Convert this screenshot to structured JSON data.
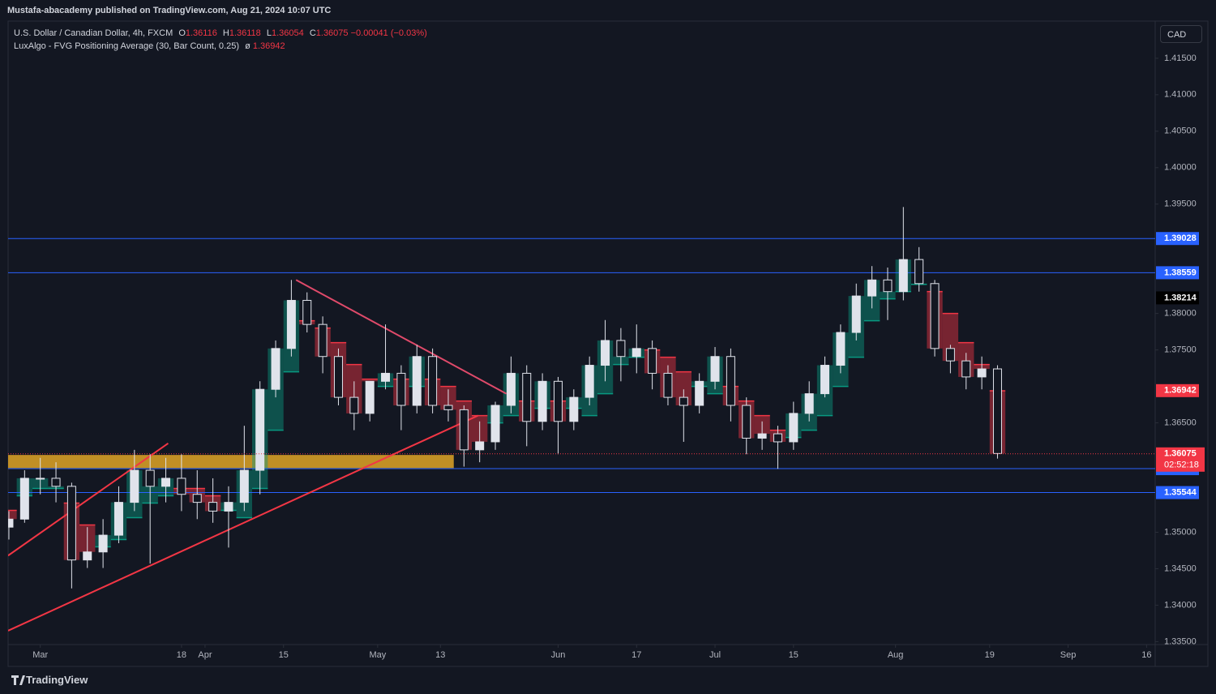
{
  "chart_data": {
    "type": "candlestick",
    "header": "Mustafa-abacademy published on TradingView.com, Aug 21, 2024 10:07 UTC",
    "symbol": "U.S. Dollar / Canadian Dollar, 4h, FXCM",
    "ohlc_labels": [
      "O",
      "H",
      "L",
      "C"
    ],
    "ohlc_values": [
      1.36116,
      1.36118,
      1.36054,
      1.36075
    ],
    "change": "−0.00041 (−0.03%)",
    "currency": "CAD",
    "brand": "TradingView",
    "up_color": "#e0e3eb",
    "down_color": "#131722",
    "x": [
      -4,
      -2,
      0,
      2,
      4,
      6,
      8,
      10,
      12,
      14,
      16,
      18,
      20,
      22,
      24,
      26,
      28,
      30,
      32,
      34,
      36,
      38,
      40,
      42,
      44,
      46,
      48,
      50,
      52,
      54,
      56,
      58,
      60,
      62,
      64,
      66,
      68,
      70,
      72,
      74,
      76,
      78,
      80,
      82,
      84,
      86,
      88,
      90,
      92,
      94,
      96,
      98,
      100,
      102,
      104,
      106,
      108,
      110,
      112,
      114,
      116,
      118,
      120,
      122
    ],
    "open": [
      1.3507,
      1.3518,
      1.3574,
      1.3574,
      1.3563,
      1.3462,
      1.3473,
      1.3496,
      1.3541,
      1.3585,
      1.3563,
      1.3574,
      1.3552,
      1.3541,
      1.3529,
      1.3541,
      1.3585,
      1.3696,
      1.3752,
      1.3818,
      1.3785,
      1.3741,
      1.3685,
      1.3663,
      1.3707,
      1.3718,
      1.3674,
      1.3741,
      1.3674,
      1.3668,
      1.3613,
      1.3624,
      1.3674,
      1.3718,
      1.3652,
      1.3707,
      1.3652,
      1.3685,
      1.3729,
      1.3763,
      1.3741,
      1.3752,
      1.3718,
      1.3685,
      1.3674,
      1.3707,
      1.3741,
      1.3674,
      1.3629,
      1.3635,
      1.3624,
      1.3663,
      1.369,
      1.3729,
      1.3774,
      1.3824,
      1.3846,
      1.383,
      1.3874,
      1.3841,
      1.3752,
      1.3735,
      1.3713,
      1.3724
    ],
    "high": [
      1.3529,
      1.3585,
      1.3602,
      1.3596,
      1.3568,
      1.3507,
      1.3518,
      1.3563,
      1.3613,
      1.3607,
      1.3602,
      1.3607,
      1.3585,
      1.3574,
      1.3563,
      1.3646,
      1.3707,
      1.3763,
      1.3846,
      1.3829,
      1.3796,
      1.3752,
      1.3707,
      1.3707,
      1.3785,
      1.3729,
      1.3757,
      1.3752,
      1.3696,
      1.3674,
      1.3652,
      1.3679,
      1.3741,
      1.3729,
      1.3718,
      1.3713,
      1.3696,
      1.3741,
      1.3791,
      1.378,
      1.3785,
      1.3763,
      1.3729,
      1.3696,
      1.3718,
      1.3754,
      1.3752,
      1.3685,
      1.3652,
      1.3646,
      1.3679,
      1.3707,
      1.3741,
      1.3785,
      1.3841,
      1.3865,
      1.3863,
      1.3946,
      1.3891,
      1.3846,
      1.3757,
      1.3746,
      1.3741,
      1.3729
    ],
    "low": [
      1.349,
      1.3513,
      1.3552,
      1.3541,
      1.3423,
      1.3451,
      1.3451,
      1.3485,
      1.3529,
      1.3457,
      1.3541,
      1.3529,
      1.3518,
      1.3513,
      1.3479,
      1.3529,
      1.3552,
      1.3685,
      1.3741,
      1.3774,
      1.3718,
      1.3674,
      1.364,
      1.3652,
      1.3696,
      1.364,
      1.3663,
      1.3663,
      1.3652,
      1.359,
      1.3596,
      1.3613,
      1.3663,
      1.3618,
      1.364,
      1.3607,
      1.364,
      1.3674,
      1.3707,
      1.3707,
      1.3718,
      1.3696,
      1.3674,
      1.3624,
      1.3663,
      1.3696,
      1.3652,
      1.3607,
      1.3613,
      1.3587,
      1.3613,
      1.3652,
      1.3685,
      1.3718,
      1.3763,
      1.3807,
      1.3791,
      1.3818,
      1.383,
      1.3741,
      1.3718,
      1.3696,
      1.3696,
      1.3601
    ],
    "close": [
      1.3518,
      1.3574,
      1.3574,
      1.3563,
      1.3462,
      1.3473,
      1.3496,
      1.3541,
      1.3585,
      1.3563,
      1.3574,
      1.3552,
      1.3541,
      1.3529,
      1.3541,
      1.3585,
      1.3696,
      1.3752,
      1.3818,
      1.3785,
      1.3741,
      1.3685,
      1.3663,
      1.3707,
      1.3718,
      1.3674,
      1.3741,
      1.3674,
      1.3668,
      1.3613,
      1.3624,
      1.3674,
      1.3718,
      1.3652,
      1.3707,
      1.3652,
      1.3685,
      1.3729,
      1.3763,
      1.3741,
      1.3752,
      1.3718,
      1.3685,
      1.3674,
      1.3707,
      1.3741,
      1.3674,
      1.3629,
      1.3635,
      1.3624,
      1.3663,
      1.369,
      1.3729,
      1.3774,
      1.3824,
      1.3846,
      1.383,
      1.3874,
      1.3841,
      1.3752,
      1.3735,
      1.3713,
      1.3724,
      1.3608
    ],
    "indicator": {
      "name": "LuxAlgo - FVG Positioning Average (30, Bar Count, 0.25)",
      "symbol": "ø",
      "value": 1.36942,
      "color": "#f23645",
      "up_color": "#089981",
      "down_color": "#f23645",
      "values": [
        1.353,
        1.355,
        1.356,
        1.356,
        1.354,
        1.351,
        1.348,
        1.349,
        1.352,
        1.354,
        1.355,
        1.356,
        1.356,
        1.355,
        1.353,
        1.352,
        1.356,
        1.364,
        1.372,
        1.379,
        1.378,
        1.376,
        1.373,
        1.371,
        1.37,
        1.371,
        1.37,
        1.371,
        1.37,
        1.368,
        1.366,
        1.365,
        1.366,
        1.368,
        1.367,
        1.368,
        1.367,
        1.366,
        1.369,
        1.373,
        1.374,
        1.375,
        1.374,
        1.372,
        1.37,
        1.369,
        1.37,
        1.368,
        1.366,
        1.364,
        1.363,
        1.364,
        1.366,
        1.37,
        1.374,
        1.379,
        1.382,
        1.383,
        1.384,
        1.383,
        1.38,
        1.376,
        1.373,
        1.3694
      ]
    },
    "xlim": [
      -4.1,
      142.1
    ],
    "xticks": [
      {
        "value": 0,
        "label": "Mar"
      },
      18,
      {
        "value": 21,
        "label": "Apr"
      },
      {
        "value": 31,
        "label": "15"
      },
      {
        "value": 43,
        "label": "May"
      },
      {
        "value": 51,
        "label": "13"
      },
      {
        "value": 66,
        "label": "Jun"
      },
      {
        "value": 76,
        "label": "17"
      },
      {
        "value": 86,
        "label": "Jul"
      },
      {
        "value": 96,
        "label": "15"
      },
      {
        "value": 109,
        "label": "Aug"
      },
      {
        "value": 121,
        "label": "19"
      },
      {
        "value": 131,
        "label": "Sep"
      },
      {
        "value": 141,
        "label": "16"
      }
    ],
    "ylim": [
      1.3346,
      1.4201
    ],
    "yticks": [
      {
        "value": 1.415,
        "label": "1.41500"
      },
      {
        "value": 1.41,
        "label": "1.41000"
      },
      {
        "value": 1.405,
        "label": "1.40500"
      },
      {
        "value": 1.4,
        "label": "1.40000"
      },
      {
        "value": 1.395,
        "label": "1.39500"
      },
      {
        "value": 1.38,
        "label": "1.38000"
      },
      {
        "value": 1.375,
        "label": "1.37500"
      },
      {
        "value": 1.365,
        "label": "1.36500"
      },
      {
        "value": 1.35,
        "label": "1.35000"
      },
      {
        "value": 1.345,
        "label": "1.34500"
      },
      {
        "value": 1.34,
        "label": "1.34000"
      },
      {
        "value": 1.335,
        "label": "1.33500"
      }
    ],
    "grid": false,
    "levels": [
      {
        "value": 1.39028,
        "color": "#2962ff"
      },
      {
        "value": 1.38559,
        "color": "#2962ff"
      },
      {
        "value": 1.35872,
        "color": "#2962ff"
      },
      {
        "value": 1.35544,
        "color": "#2962ff"
      }
    ],
    "high_label": 1.38214,
    "last_price": 1.36075,
    "countdown": "02:52:18",
    "zone": {
      "top": 1.3606,
      "bottom": 1.3588,
      "x": [
        -4.1,
        52.7
      ],
      "color": "#e0a526"
    },
    "trendlines": [
      {
        "x": [
          -4.1,
          16.3
        ],
        "y": [
          1.3468,
          1.3622
        ],
        "color": "#f23645"
      },
      {
        "x": [
          -4.1,
          55.8
        ],
        "y": [
          1.3365,
          1.366
        ],
        "color": "#f23645"
      },
      {
        "x": [
          32.6,
          59.4
        ],
        "y": [
          1.3846,
          1.369
        ],
        "color": "#e04a6a"
      }
    ]
  }
}
